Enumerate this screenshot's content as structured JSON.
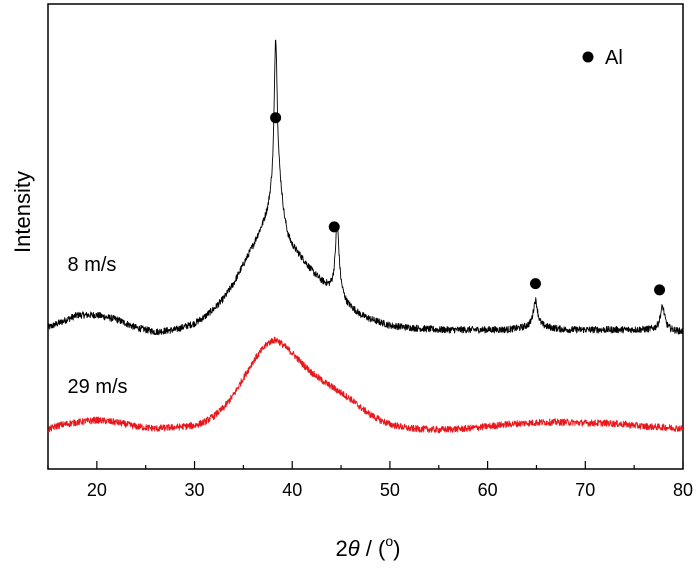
{
  "chart_data": {
    "type": "line",
    "xlabel": {
      "prefix": "2",
      "symbol": "θ",
      "suffix": " / (",
      "unit_sup": "o",
      "close": ")"
    },
    "ylabel": "Intensity",
    "xlim": [
      15,
      80
    ],
    "xticks": [
      20,
      30,
      40,
      50,
      60,
      70,
      80
    ],
    "ylim": [
      0,
      100
    ],
    "y_ticks_labeled": false,
    "grid": false,
    "legend": {
      "position": "top-right",
      "entries": [
        {
          "marker": "filled-circle",
          "label": "Al",
          "color": "#000000"
        }
      ]
    },
    "series": [
      {
        "name": "8 m/s",
        "color": "#000000",
        "baseline_points": [
          [
            15,
            31.5
          ],
          [
            16,
            32.5
          ],
          [
            18,
            34.5
          ],
          [
            20,
            34.5
          ],
          [
            22,
            33.5
          ],
          [
            24,
            31.5
          ],
          [
            26,
            30.5
          ],
          [
            28,
            31
          ],
          [
            30,
            32.5
          ],
          [
            31,
            34
          ],
          [
            32,
            36
          ],
          [
            33,
            38.5
          ],
          [
            34,
            42
          ],
          [
            35,
            46.5
          ],
          [
            36,
            51
          ],
          [
            37,
            56
          ],
          [
            37.5,
            59
          ],
          [
            38,
            64
          ],
          [
            38.4,
            70
          ],
          [
            38.8,
            64
          ],
          [
            39.2,
            57
          ],
          [
            39.6,
            53
          ],
          [
            40,
            51
          ],
          [
            41,
            48
          ],
          [
            42,
            45
          ],
          [
            43,
            42.5
          ],
          [
            43.8,
            41
          ],
          [
            44.8,
            40
          ],
          [
            45.6,
            37
          ],
          [
            47,
            34.5
          ],
          [
            48,
            33.5
          ],
          [
            50,
            32
          ],
          [
            52,
            31.5
          ],
          [
            55,
            31
          ],
          [
            58,
            31
          ],
          [
            60,
            31
          ],
          [
            62,
            31
          ],
          [
            64,
            31.5
          ],
          [
            66,
            31.5
          ],
          [
            68,
            31
          ],
          [
            70,
            31
          ],
          [
            72,
            31
          ],
          [
            74,
            31
          ],
          [
            76,
            31
          ],
          [
            77,
            31
          ],
          [
            78,
            31
          ],
          [
            80,
            30.5
          ]
        ],
        "peaks": [
          {
            "center": 38.3,
            "height": 32,
            "fwhm": 0.35
          },
          {
            "center": 44.6,
            "height": 16,
            "fwhm": 0.45
          },
          {
            "center": 64.9,
            "height": 6.5,
            "fwhm": 0.55
          },
          {
            "center": 77.9,
            "height": 5.5,
            "fwhm": 0.55
          }
        ]
      },
      {
        "name": "29 m/s",
        "color": "#e8171b",
        "baseline_points": [
          [
            15,
            7.2
          ],
          [
            16,
            8.2
          ],
          [
            18,
            9
          ],
          [
            20,
            9.5
          ],
          [
            22,
            9
          ],
          [
            24,
            8
          ],
          [
            26,
            7.5
          ],
          [
            28,
            7.8
          ],
          [
            30,
            8.2
          ],
          [
            31,
            9
          ],
          [
            32,
            10.5
          ],
          [
            33,
            12.5
          ],
          [
            34,
            15.5
          ],
          [
            35,
            19.5
          ],
          [
            36,
            23.5
          ],
          [
            37,
            26.5
          ],
          [
            37.5,
            27.8
          ],
          [
            38,
            28.5
          ],
          [
            38.5,
            28.5
          ],
          [
            39,
            27.5
          ],
          [
            40,
            25.5
          ],
          [
            41,
            23
          ],
          [
            42,
            20.8
          ],
          [
            43,
            19
          ],
          [
            44,
            17.5
          ],
          [
            45,
            16
          ],
          [
            46,
            14.5
          ],
          [
            47,
            12.5
          ],
          [
            48,
            10.8
          ],
          [
            49,
            9.5
          ],
          [
            50,
            8.5
          ],
          [
            52,
            7.5
          ],
          [
            55,
            7.2
          ],
          [
            58,
            7.5
          ],
          [
            60,
            8
          ],
          [
            62,
            8.5
          ],
          [
            64,
            8.8
          ],
          [
            66,
            9
          ],
          [
            68,
            9
          ],
          [
            70,
            8.8
          ],
          [
            72,
            8.8
          ],
          [
            74,
            8.5
          ],
          [
            76,
            8
          ],
          [
            78,
            7.8
          ],
          [
            80,
            7.5
          ]
        ],
        "peaks": []
      }
    ],
    "annotations": [
      {
        "marker": "filled-circle",
        "x": 38.3,
        "y": 81.5,
        "label": "Al"
      },
      {
        "marker": "filled-circle",
        "x": 44.3,
        "y": 55.5,
        "label": "Al"
      },
      {
        "marker": "filled-circle",
        "x": 64.9,
        "y": 42,
        "label": "Al"
      },
      {
        "marker": "filled-circle",
        "x": 77.6,
        "y": 40.5,
        "label": "Al"
      }
    ],
    "series_labels": [
      {
        "text": "8 m/s",
        "x": 17,
        "y": 45
      },
      {
        "text": "29 m/s",
        "x": 17,
        "y": 16
      }
    ]
  }
}
